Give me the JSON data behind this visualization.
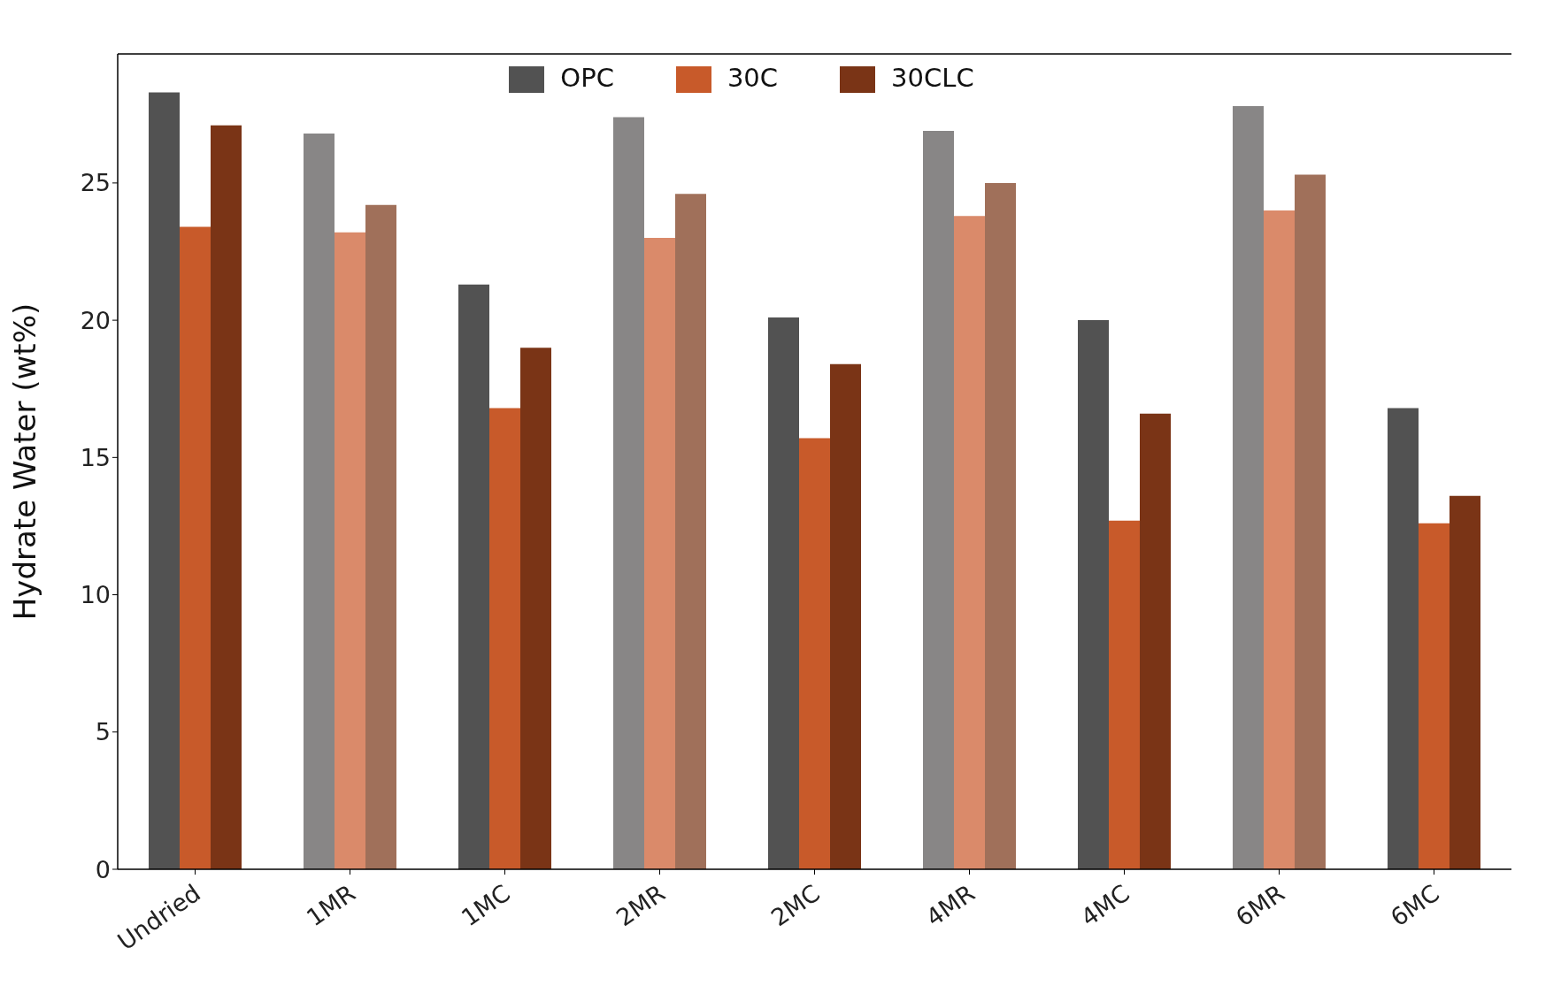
{
  "chart_data": {
    "type": "bar",
    "ylabel": "Hydrate Water (wt%)",
    "categories": [
      "Undried",
      "1MR",
      "1MC",
      "2MR",
      "2MC",
      "4MR",
      "4MC",
      "6MR",
      "6MC"
    ],
    "series": [
      {
        "name": "OPC",
        "color": "#525252",
        "colors": [
          "#525252",
          "#888686",
          "#525252",
          "#888686",
          "#525252",
          "#888686",
          "#525252",
          "#888686",
          "#525252"
        ],
        "values": [
          28.3,
          26.8,
          21.3,
          27.4,
          20.1,
          26.9,
          20.0,
          27.8,
          16.8
        ]
      },
      {
        "name": "30C",
        "color": "#c85a2a",
        "colors": [
          "#c85a2a",
          "#da8a6a",
          "#c85a2a",
          "#da8a6a",
          "#c85a2a",
          "#da8a6a",
          "#c85a2a",
          "#da8a6a",
          "#c85a2a"
        ],
        "values": [
          23.4,
          23.2,
          16.8,
          23.0,
          15.7,
          23.8,
          12.7,
          24.0,
          12.6
        ]
      },
      {
        "name": "30CLC",
        "color": "#7a3416",
        "colors": [
          "#7a3416",
          "#a0705a",
          "#7a3416",
          "#a0705a",
          "#7a3416",
          "#a0705a",
          "#7a3416",
          "#a0705a",
          "#7a3416"
        ],
        "values": [
          27.1,
          24.2,
          19.0,
          24.6,
          18.4,
          25.0,
          16.6,
          25.3,
          13.6
        ]
      }
    ],
    "ylim": [
      0,
      29.7
    ],
    "yticks": [
      0,
      5,
      10,
      15,
      20,
      25
    ],
    "legend": "top"
  }
}
